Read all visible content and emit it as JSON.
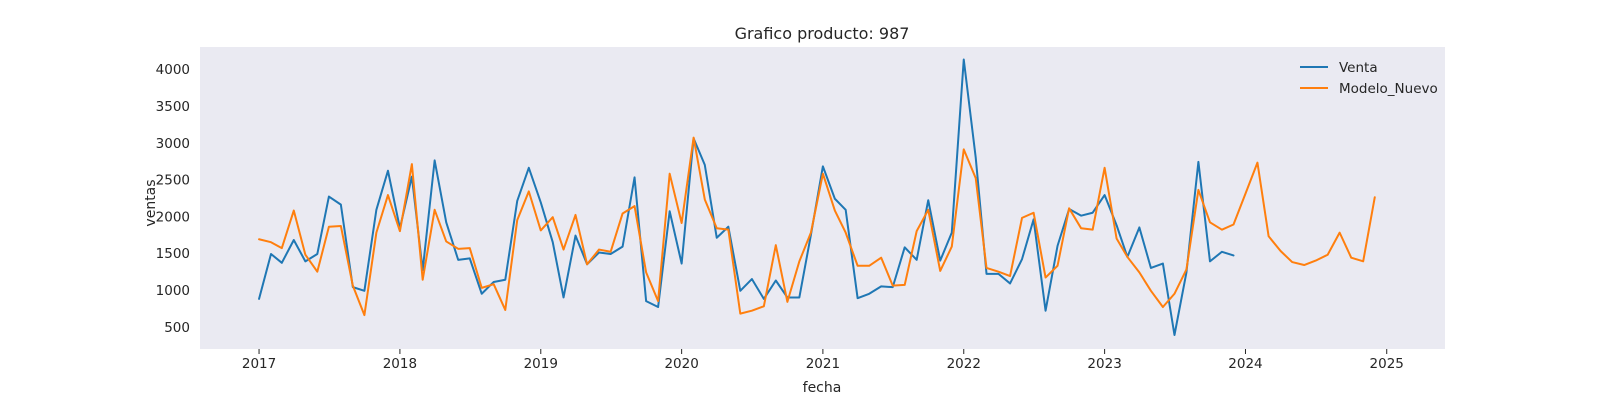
{
  "chart_data": {
    "type": "line",
    "title": "Grafico producto: 987",
    "xlabel": "fecha",
    "ylabel": "ventas",
    "x_axis_type": "date",
    "xlim": [
      "2016-08-01",
      "2025-06-01"
    ],
    "ylim": [
      200,
      4300
    ],
    "yticks": [
      500,
      1000,
      1500,
      2000,
      2500,
      3000,
      3500,
      4000
    ],
    "xticks": [
      "2017-01-01",
      "2018-01-01",
      "2019-01-01",
      "2020-01-01",
      "2021-01-01",
      "2022-01-01",
      "2023-01-01",
      "2024-01-01",
      "2025-01-01"
    ],
    "xtick_labels": [
      "2017",
      "2018",
      "2019",
      "2020",
      "2021",
      "2022",
      "2023",
      "2024",
      "2025"
    ],
    "grid": false,
    "background": "#eaeaf2",
    "legend_position": "top-right",
    "series": [
      {
        "name": "Venta",
        "color": "#1f77b4",
        "start": "2017-01",
        "frequency": "monthly",
        "values": [
          880,
          1490,
          1370,
          1680,
          1390,
          1490,
          2270,
          2160,
          1040,
          990,
          2090,
          2620,
          1840,
          2540,
          1270,
          2760,
          1920,
          1410,
          1430,
          950,
          1110,
          1140,
          2210,
          2660,
          2190,
          1650,
          900,
          1740,
          1350,
          1510,
          1490,
          1590,
          2530,
          850,
          770,
          2070,
          1360,
          3060,
          2700,
          1710,
          1860,
          990,
          1150,
          880,
          1130,
          900,
          900,
          1750,
          2680,
          2240,
          2090,
          890,
          950,
          1050,
          1040,
          1580,
          1410,
          2220,
          1400,
          1780,
          4130,
          2800,
          1220,
          1220,
          1090,
          1420,
          1960,
          720,
          1600,
          2100,
          2010,
          2050,
          2290,
          1880,
          1450,
          1850,
          1300,
          1360,
          390,
          1240,
          2740,
          1390,
          1520,
          1470
        ]
      },
      {
        "name": "Modelo_Nuevo",
        "color": "#ff7f0e",
        "start": "2017-01",
        "frequency": "monthly",
        "values": [
          1690,
          1650,
          1570,
          2080,
          1480,
          1250,
          1860,
          1870,
          1060,
          660,
          1780,
          2290,
          1800,
          2710,
          1140,
          2090,
          1660,
          1560,
          1570,
          1030,
          1080,
          730,
          1950,
          2340,
          1810,
          1990,
          1550,
          2020,
          1350,
          1550,
          1520,
          2040,
          2140,
          1240,
          850,
          2580,
          1910,
          3070,
          2230,
          1840,
          1820,
          680,
          720,
          780,
          1610,
          840,
          1390,
          1780,
          2580,
          2080,
          1780,
          1330,
          1330,
          1440,
          1060,
          1070,
          1800,
          2090,
          1260,
          1590,
          2910,
          2520,
          1300,
          1250,
          1190,
          1980,
          2050,
          1170,
          1330,
          2110,
          1840,
          1820,
          2660,
          1700,
          1450,
          1240,
          990,
          770,
          950,
          1280,
          2360,
          1920,
          1820,
          1890,
          2310,
          2730,
          1730,
          1530,
          1380,
          1340,
          1400,
          1480,
          1780,
          1440,
          1390,
          2260
        ]
      }
    ]
  }
}
